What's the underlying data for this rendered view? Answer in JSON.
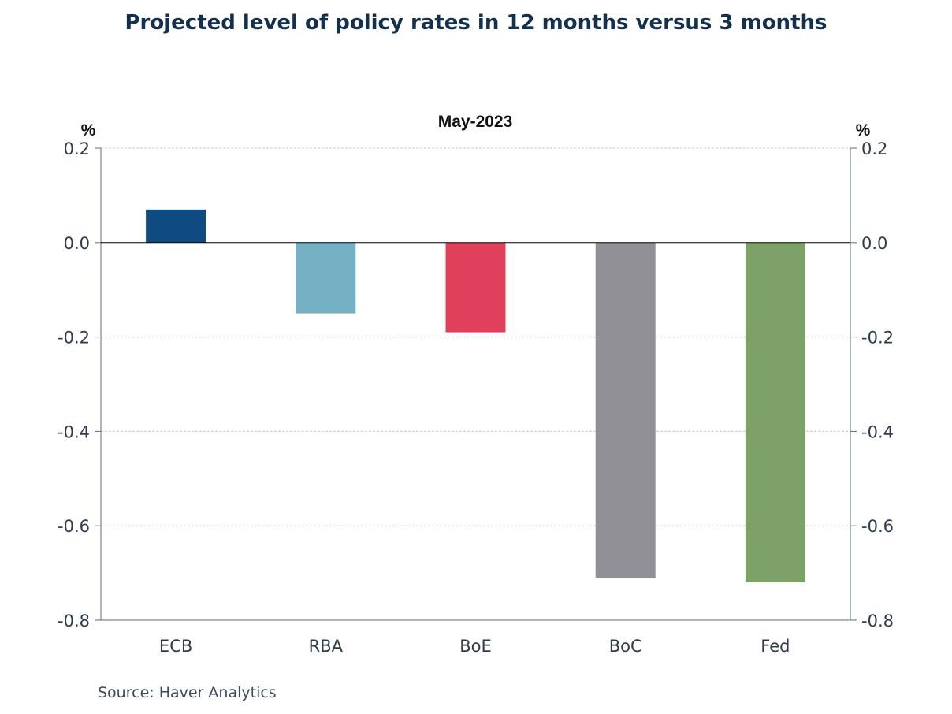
{
  "chart_data": {
    "type": "bar",
    "title": "Projected level of policy rates in 12 months versus 3 months",
    "subtitle": "May-2023",
    "ylabel_left": "%",
    "ylabel_right": "%",
    "categories": [
      "ECB",
      "RBA",
      "BoE",
      "BoC",
      "Fed"
    ],
    "values": [
      0.07,
      -0.15,
      -0.19,
      -0.71,
      -0.72
    ],
    "colors": [
      "#0f4a80",
      "#76b0c5",
      "#e0405a",
      "#909096",
      "#7da268"
    ],
    "ylim": [
      -0.8,
      0.2
    ],
    "yticks": [
      0.2,
      0.0,
      -0.2,
      -0.4,
      -0.6,
      -0.8
    ],
    "ytick_labels": [
      "0.2",
      "0.0",
      "-0.2",
      "-0.4",
      "-0.6",
      "-0.8"
    ],
    "grid": true,
    "axis_color": "#5a6b80",
    "grid_color": "#c8ccd2",
    "zero_line_color": "#000000"
  },
  "source": "Source:  Haver Analytics"
}
